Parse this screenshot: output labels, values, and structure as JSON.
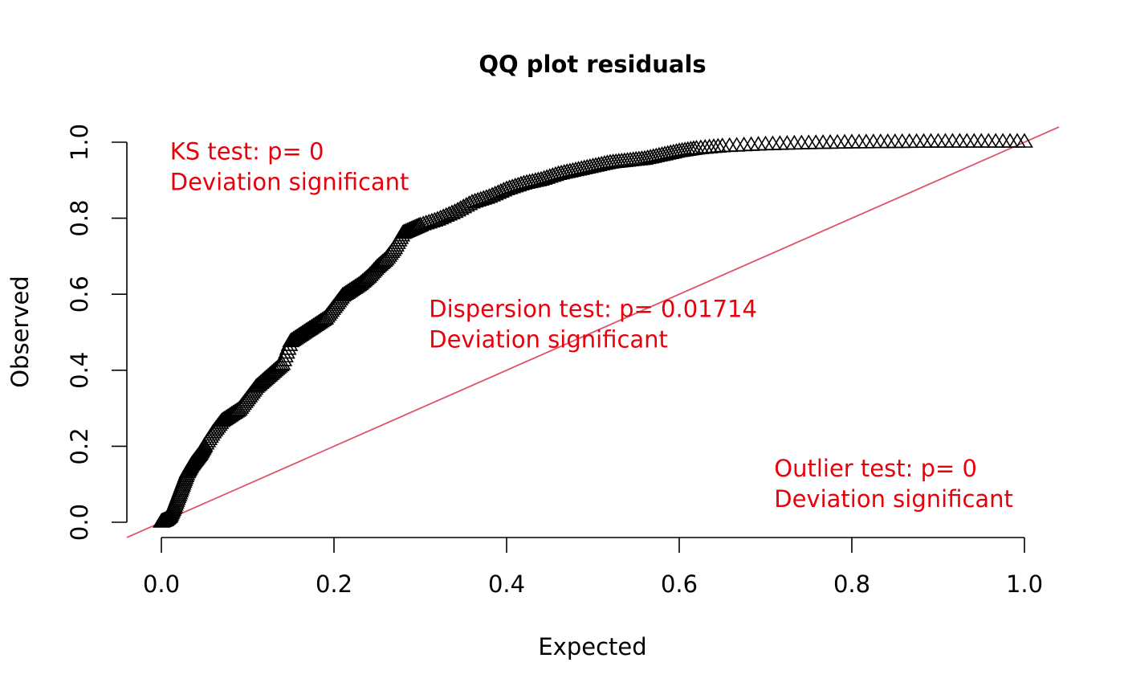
{
  "chart_data": {
    "type": "scatter",
    "title": "QQ plot residuals",
    "xlabel": "Expected",
    "ylabel": "Observed",
    "xlim": [
      0,
      1
    ],
    "ylim": [
      0,
      1
    ],
    "x_ticks": [
      "0.0",
      "0.2",
      "0.4",
      "0.6",
      "0.8",
      "1.0"
    ],
    "y_ticks": [
      "0.0",
      "0.2",
      "0.4",
      "0.6",
      "0.8",
      "1.0"
    ],
    "marker": "triangle-open",
    "point_color": "#000000",
    "reference_line": {
      "x": [
        0,
        1
      ],
      "y": [
        0,
        1
      ],
      "color": "#DF536B"
    },
    "annotation_color": "#E8000B",
    "annotations": [
      {
        "lines": [
          "KS test: p= 0",
          "Deviation  significant"
        ],
        "x": 0.01,
        "y": 0.955
      },
      {
        "lines": [
          "Dispersion test: p= 0.01714",
          "Deviation  significant"
        ],
        "x": 0.31,
        "y": 0.54
      },
      {
        "lines": [
          "Outlier test: p= 0",
          "Deviation  significant"
        ],
        "x": 0.71,
        "y": 0.12
      }
    ],
    "curve_points": [
      [
        0.0,
        0.0
      ],
      [
        0.005,
        0.005
      ],
      [
        0.01,
        0.015
      ],
      [
        0.015,
        0.04
      ],
      [
        0.02,
        0.07
      ],
      [
        0.025,
        0.1
      ],
      [
        0.03,
        0.13
      ],
      [
        0.035,
        0.15
      ],
      [
        0.04,
        0.165
      ],
      [
        0.045,
        0.18
      ],
      [
        0.05,
        0.2
      ],
      [
        0.06,
        0.235
      ],
      [
        0.07,
        0.265
      ],
      [
        0.08,
        0.28
      ],
      [
        0.09,
        0.295
      ],
      [
        0.1,
        0.325
      ],
      [
        0.11,
        0.355
      ],
      [
        0.12,
        0.375
      ],
      [
        0.13,
        0.395
      ],
      [
        0.14,
        0.415
      ],
      [
        0.15,
        0.475
      ],
      [
        0.16,
        0.49
      ],
      [
        0.17,
        0.505
      ],
      [
        0.18,
        0.52
      ],
      [
        0.19,
        0.535
      ],
      [
        0.2,
        0.565
      ],
      [
        0.21,
        0.595
      ],
      [
        0.22,
        0.61
      ],
      [
        0.23,
        0.625
      ],
      [
        0.24,
        0.645
      ],
      [
        0.25,
        0.67
      ],
      [
        0.26,
        0.69
      ],
      [
        0.27,
        0.72
      ],
      [
        0.28,
        0.76
      ],
      [
        0.29,
        0.77
      ],
      [
        0.3,
        0.78
      ],
      [
        0.32,
        0.795
      ],
      [
        0.34,
        0.815
      ],
      [
        0.36,
        0.84
      ],
      [
        0.38,
        0.855
      ],
      [
        0.4,
        0.875
      ],
      [
        0.42,
        0.89
      ],
      [
        0.44,
        0.9
      ],
      [
        0.46,
        0.915
      ],
      [
        0.48,
        0.925
      ],
      [
        0.5,
        0.935
      ],
      [
        0.52,
        0.945
      ],
      [
        0.54,
        0.95
      ],
      [
        0.56,
        0.955
      ],
      [
        0.58,
        0.965
      ],
      [
        0.6,
        0.975
      ],
      [
        0.62,
        0.982
      ],
      [
        0.65,
        0.988
      ],
      [
        0.7,
        0.993
      ],
      [
        0.75,
        0.996
      ],
      [
        0.8,
        0.998
      ],
      [
        0.85,
        0.999
      ],
      [
        0.9,
        1.0
      ],
      [
        0.95,
        1.0
      ],
      [
        1.0,
        1.0
      ]
    ]
  }
}
